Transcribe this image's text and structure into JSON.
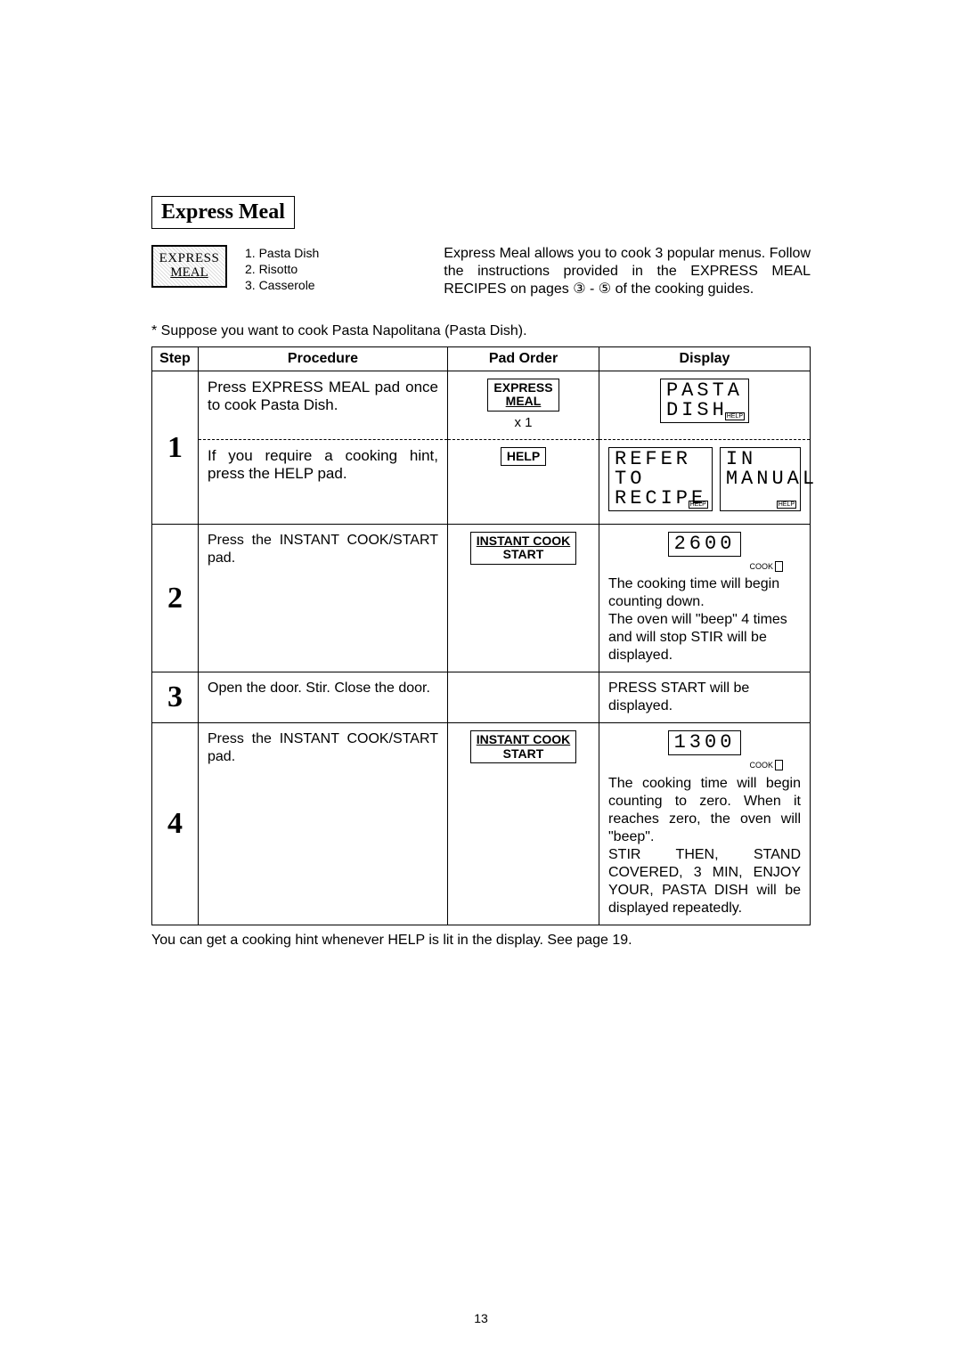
{
  "section_title": "Express Meal",
  "pad_label_line1": "EXPRESS",
  "pad_label_line2": "MEAL",
  "menu_list": {
    "item1": "1. Pasta Dish",
    "item2": "2. Risotto",
    "item3": "3. Casserole"
  },
  "intro_text": "Express Meal allows you to cook 3 popular menus. Follow the instructions provided in the EXPRESS MEAL RECIPES on pages ③ - ⑤ of the cooking guides.",
  "suppose_line": "* Suppose you want to cook Pasta Napolitana (Pasta Dish).",
  "table_headers": {
    "step": "Step",
    "procedure": "Procedure",
    "pad_order": "Pad Order",
    "display": "Display"
  },
  "rows": {
    "r1": {
      "num": "1",
      "proc_top": "Press EXPRESS MEAL pad once to cook Pasta Dish.",
      "pad_top_line1": "EXPRESS",
      "pad_top_line2": "MEAL",
      "pad_top_x": "x 1",
      "disp_top_line1": "PASTA",
      "disp_top_line2": "DISH",
      "disp_top_tiny": "HELP",
      "proc_bot": "If you require a cooking hint, press the HELP pad.",
      "pad_bot": "HELP",
      "disp_bot_a1": "REFER TO",
      "disp_bot_a2": "RECIPE",
      "disp_bot_a_tiny": "HELP",
      "disp_bot_b1": "IN",
      "disp_bot_b2": "MANUAL",
      "disp_bot_b_tiny": "HELP"
    },
    "r2": {
      "num": "2",
      "proc": "Press the INSTANT COOK/START pad.",
      "pad_line1": "INSTANT COOK",
      "pad_line2": "START",
      "disp_lcd": "2600",
      "cook_label": "COOK",
      "disp_text1": "The cooking time will begin counting down.",
      "disp_text2": "The oven will \"beep\" 4 times and will stop STIR will be displayed."
    },
    "r3": {
      "num": "3",
      "proc": "Open the door. Stir. Close the door.",
      "disp": "PRESS START will be displayed."
    },
    "r4": {
      "num": "4",
      "proc": "Press the INSTANT COOK/START pad.",
      "pad_line1": "INSTANT COOK",
      "pad_line2": "START",
      "disp_lcd": "1300",
      "cook_label": "COOK",
      "disp_text1": "The cooking time will begin counting to zero. When it reaches zero, the oven will \"beep\".",
      "disp_text2": "STIR THEN, STAND COVERED, 3 MIN, ENJOY YOUR, PASTA DISH will be displayed repeatedly."
    }
  },
  "footnote": "You can get a cooking hint whenever HELP is lit in the display. See page 19.",
  "page_number": "13"
}
